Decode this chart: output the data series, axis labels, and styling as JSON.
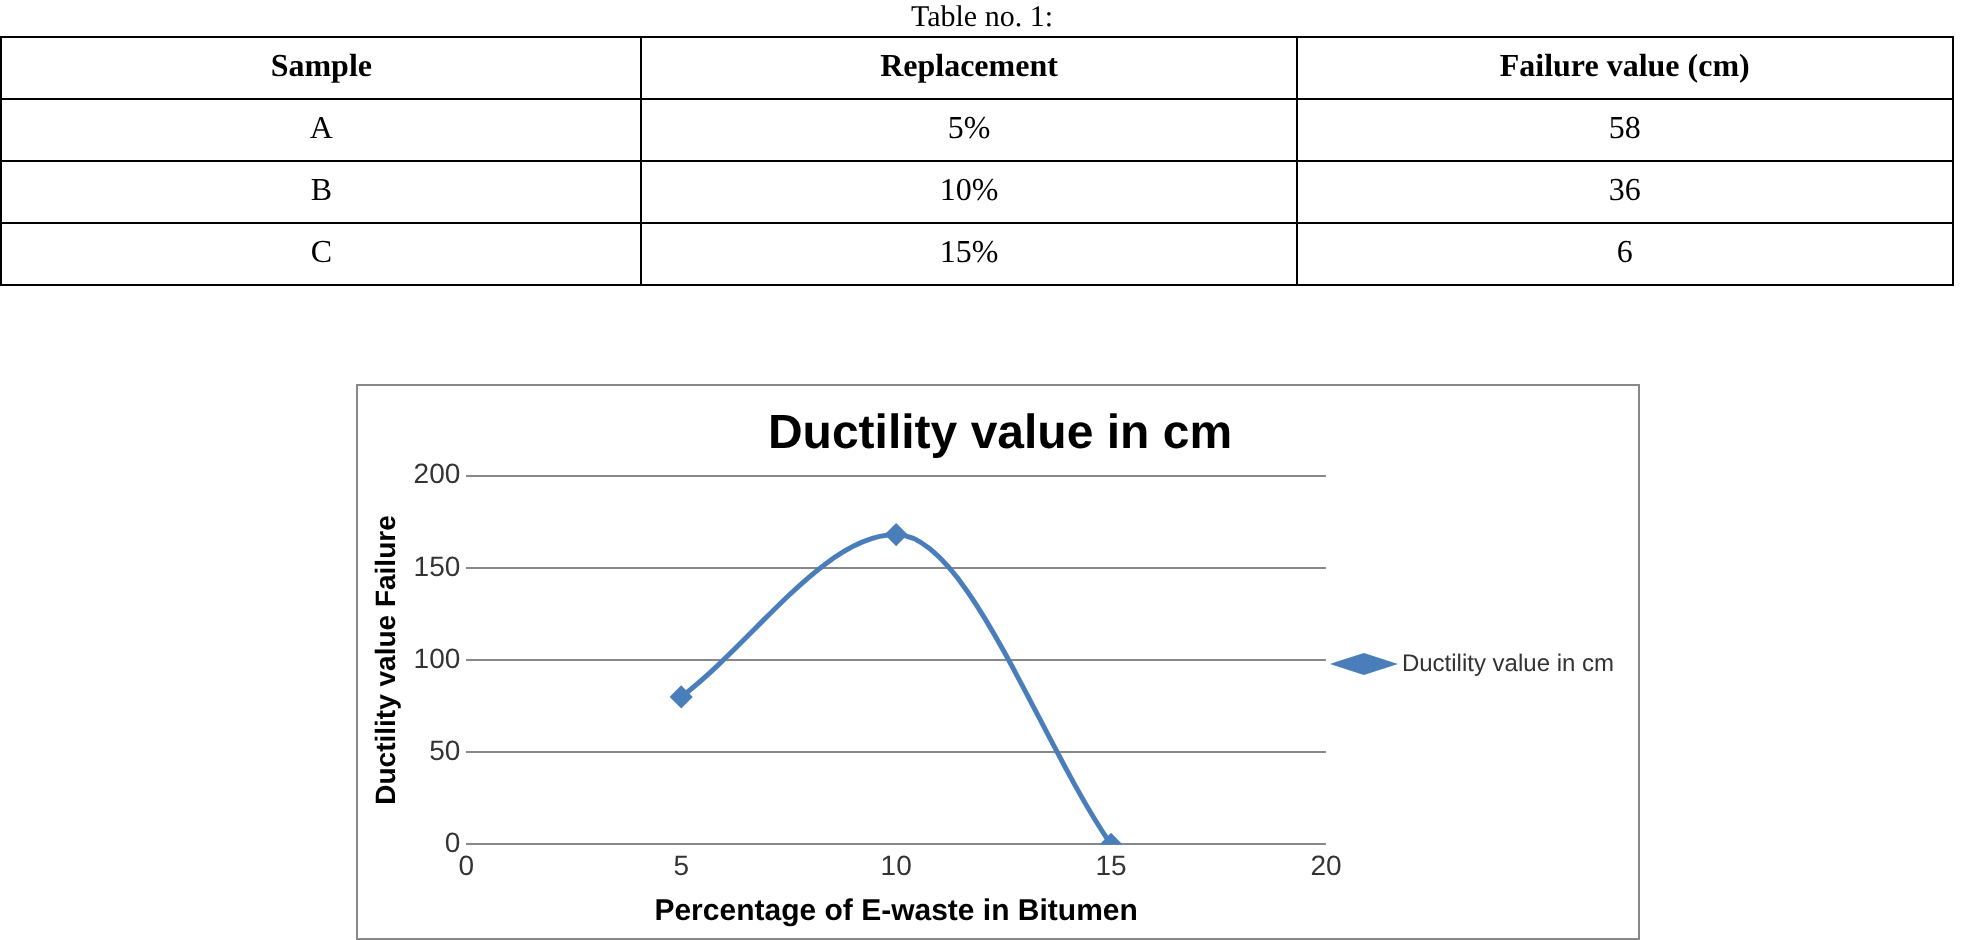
{
  "chart_data": {
    "type": "line",
    "title": "Ductility value in cm",
    "xlabel": "Percentage of E-waste in Bitumen",
    "ylabel": "Ductility value Failure",
    "x": [
      5,
      10,
      15
    ],
    "series": [
      {
        "name": "Ductility value in cm",
        "color": "#4a7ebb",
        "values": [
          80,
          168,
          0
        ]
      }
    ],
    "xlim": [
      0,
      20
    ],
    "xticks": [
      0,
      5,
      10,
      15,
      20
    ],
    "ylim": [
      0,
      200
    ],
    "yticks": [
      0,
      50,
      100,
      150,
      200
    ],
    "grid": "y",
    "legend": "right",
    "marker": "diamond",
    "line_style": "solid",
    "annotations": [
      "Table no. 1:",
      "Sample",
      "Replacement",
      "Failure value (cm)",
      "A",
      "5%",
      "58",
      "B",
      "10%",
      "36",
      "C",
      "15%",
      "6"
    ]
  }
}
